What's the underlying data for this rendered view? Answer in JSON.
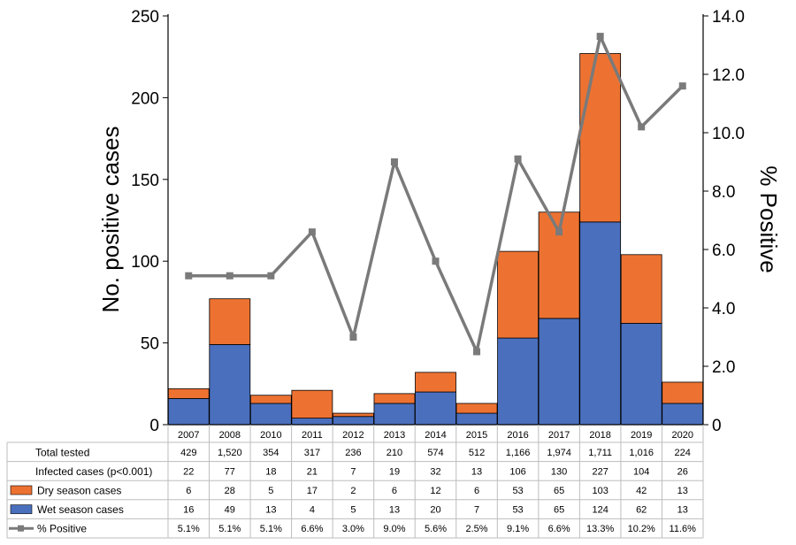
{
  "chart_data": {
    "type": "bar",
    "stacked": true,
    "categories": [
      "2007",
      "2008",
      "2010",
      "2011",
      "2012",
      "2013",
      "2014",
      "2015",
      "2016",
      "2017",
      "2018",
      "2019",
      "2020"
    ],
    "ylabel": "No. positive cases",
    "y2label": "% Positive",
    "ylim": [
      0,
      250
    ],
    "y2lim": [
      0,
      14
    ],
    "yticks": [
      "0",
      "50",
      "100",
      "150",
      "200",
      "250"
    ],
    "y2ticks": [
      "0",
      "2.0",
      "4.0",
      "6.0",
      "8.0",
      "10.0",
      "12.0",
      "14.0"
    ],
    "series": [
      {
        "name": "Wet season cases",
        "type": "bar",
        "color": "#4a6fbd",
        "values": [
          16,
          49,
          13,
          4,
          5,
          13,
          20,
          7,
          53,
          65,
          124,
          62,
          13
        ]
      },
      {
        "name": "Dry season cases",
        "type": "bar",
        "color": "#ed7232",
        "values": [
          6,
          28,
          5,
          17,
          2,
          6,
          12,
          6,
          53,
          65,
          103,
          42,
          13
        ]
      },
      {
        "name": "% Positive",
        "type": "line",
        "axis": "right",
        "color": "#7a7a7a",
        "values": [
          5.1,
          5.1,
          5.1,
          6.6,
          3.0,
          9.0,
          5.6,
          2.5,
          9.1,
          6.6,
          13.3,
          10.2,
          11.6
        ]
      }
    ],
    "table": {
      "rows": [
        {
          "label": "Total tested",
          "values": [
            "429",
            "1,520",
            "354",
            "317",
            "236",
            "210",
            "574",
            "512",
            "1,166",
            "1,974",
            "1,711",
            "1,016",
            "224"
          ]
        },
        {
          "label": "Infected cases (p<0.001)",
          "values": [
            "22",
            "77",
            "18",
            "21",
            "7",
            "19",
            "32",
            "13",
            "106",
            "130",
            "227",
            "104",
            "26"
          ]
        },
        {
          "label": "Dry season cases",
          "legend": "dry",
          "values": [
            "6",
            "28",
            "5",
            "17",
            "2",
            "6",
            "12",
            "6",
            "53",
            "65",
            "103",
            "42",
            "13"
          ]
        },
        {
          "label": "Wet season cases",
          "legend": "wet",
          "values": [
            "16",
            "49",
            "13",
            "4",
            "5",
            "13",
            "20",
            "7",
            "53",
            "65",
            "124",
            "62",
            "13"
          ]
        },
        {
          "label": "% Positive",
          "legend": "line",
          "values": [
            "5.1%",
            "5.1%",
            "5.1%",
            "6.6%",
            "3.0%",
            "9.0%",
            "5.6%",
            "2.5%",
            "9.1%",
            "6.6%",
            "13.3%",
            "10.2%",
            "11.6%"
          ]
        }
      ]
    }
  }
}
